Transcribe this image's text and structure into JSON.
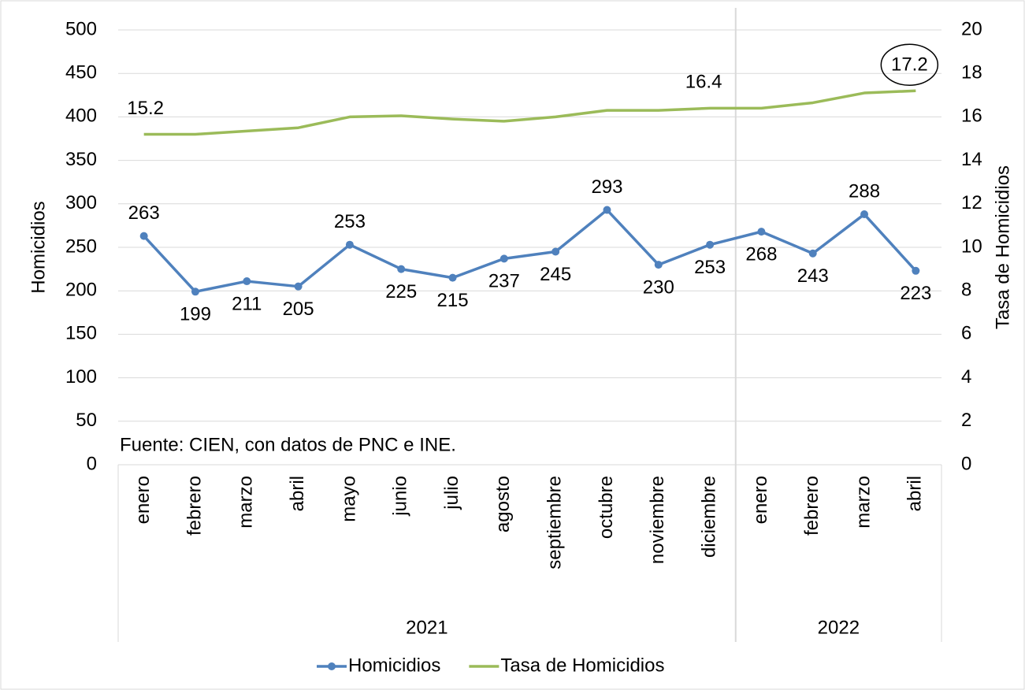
{
  "chart_data": {
    "type": "line",
    "categories": [
      "enero",
      "febrero",
      "marzo",
      "abril",
      "mayo",
      "junio",
      "julio",
      "agosto",
      "septiembre",
      "octubre",
      "noviembre",
      "diciembre",
      "enero",
      "febrero",
      "marzo",
      "abril"
    ],
    "groups": [
      {
        "label": "2021",
        "span": 12
      },
      {
        "label": "2022",
        "span": 4
      }
    ],
    "series": [
      {
        "name": "Homicidios",
        "color": "#4f81bd",
        "values": [
          263,
          199,
          211,
          205,
          253,
          225,
          215,
          237,
          245,
          293,
          230,
          253,
          268,
          243,
          288,
          223
        ]
      },
      {
        "name": "Tasa de Homicidios",
        "color": "#9bbb59",
        "axis": "y2",
        "values": [
          15.2,
          15.2,
          15.35,
          15.5,
          16.0,
          16.05,
          15.9,
          15.8,
          16.0,
          16.3,
          16.3,
          16.4,
          16.4,
          16.65,
          17.1,
          17.2
        ],
        "value_labels": [
          "15.2",
          null,
          null,
          null,
          null,
          null,
          null,
          null,
          null,
          null,
          null,
          "16.4",
          null,
          null,
          null,
          "17.2"
        ]
      }
    ],
    "ylabel": "Homicidios",
    "y2label": "Tasa de Homicidios",
    "ylim": [
      0,
      500
    ],
    "yticks": [
      0,
      50,
      100,
      150,
      200,
      250,
      300,
      350,
      400,
      450,
      500
    ],
    "y2lim": [
      0,
      20
    ],
    "y2ticks": [
      0,
      2,
      4,
      6,
      8,
      10,
      12,
      14,
      16,
      18,
      20
    ],
    "annotation": "Fuente: CIEN, con datos de PNC e INE.",
    "legend": "bottom"
  }
}
